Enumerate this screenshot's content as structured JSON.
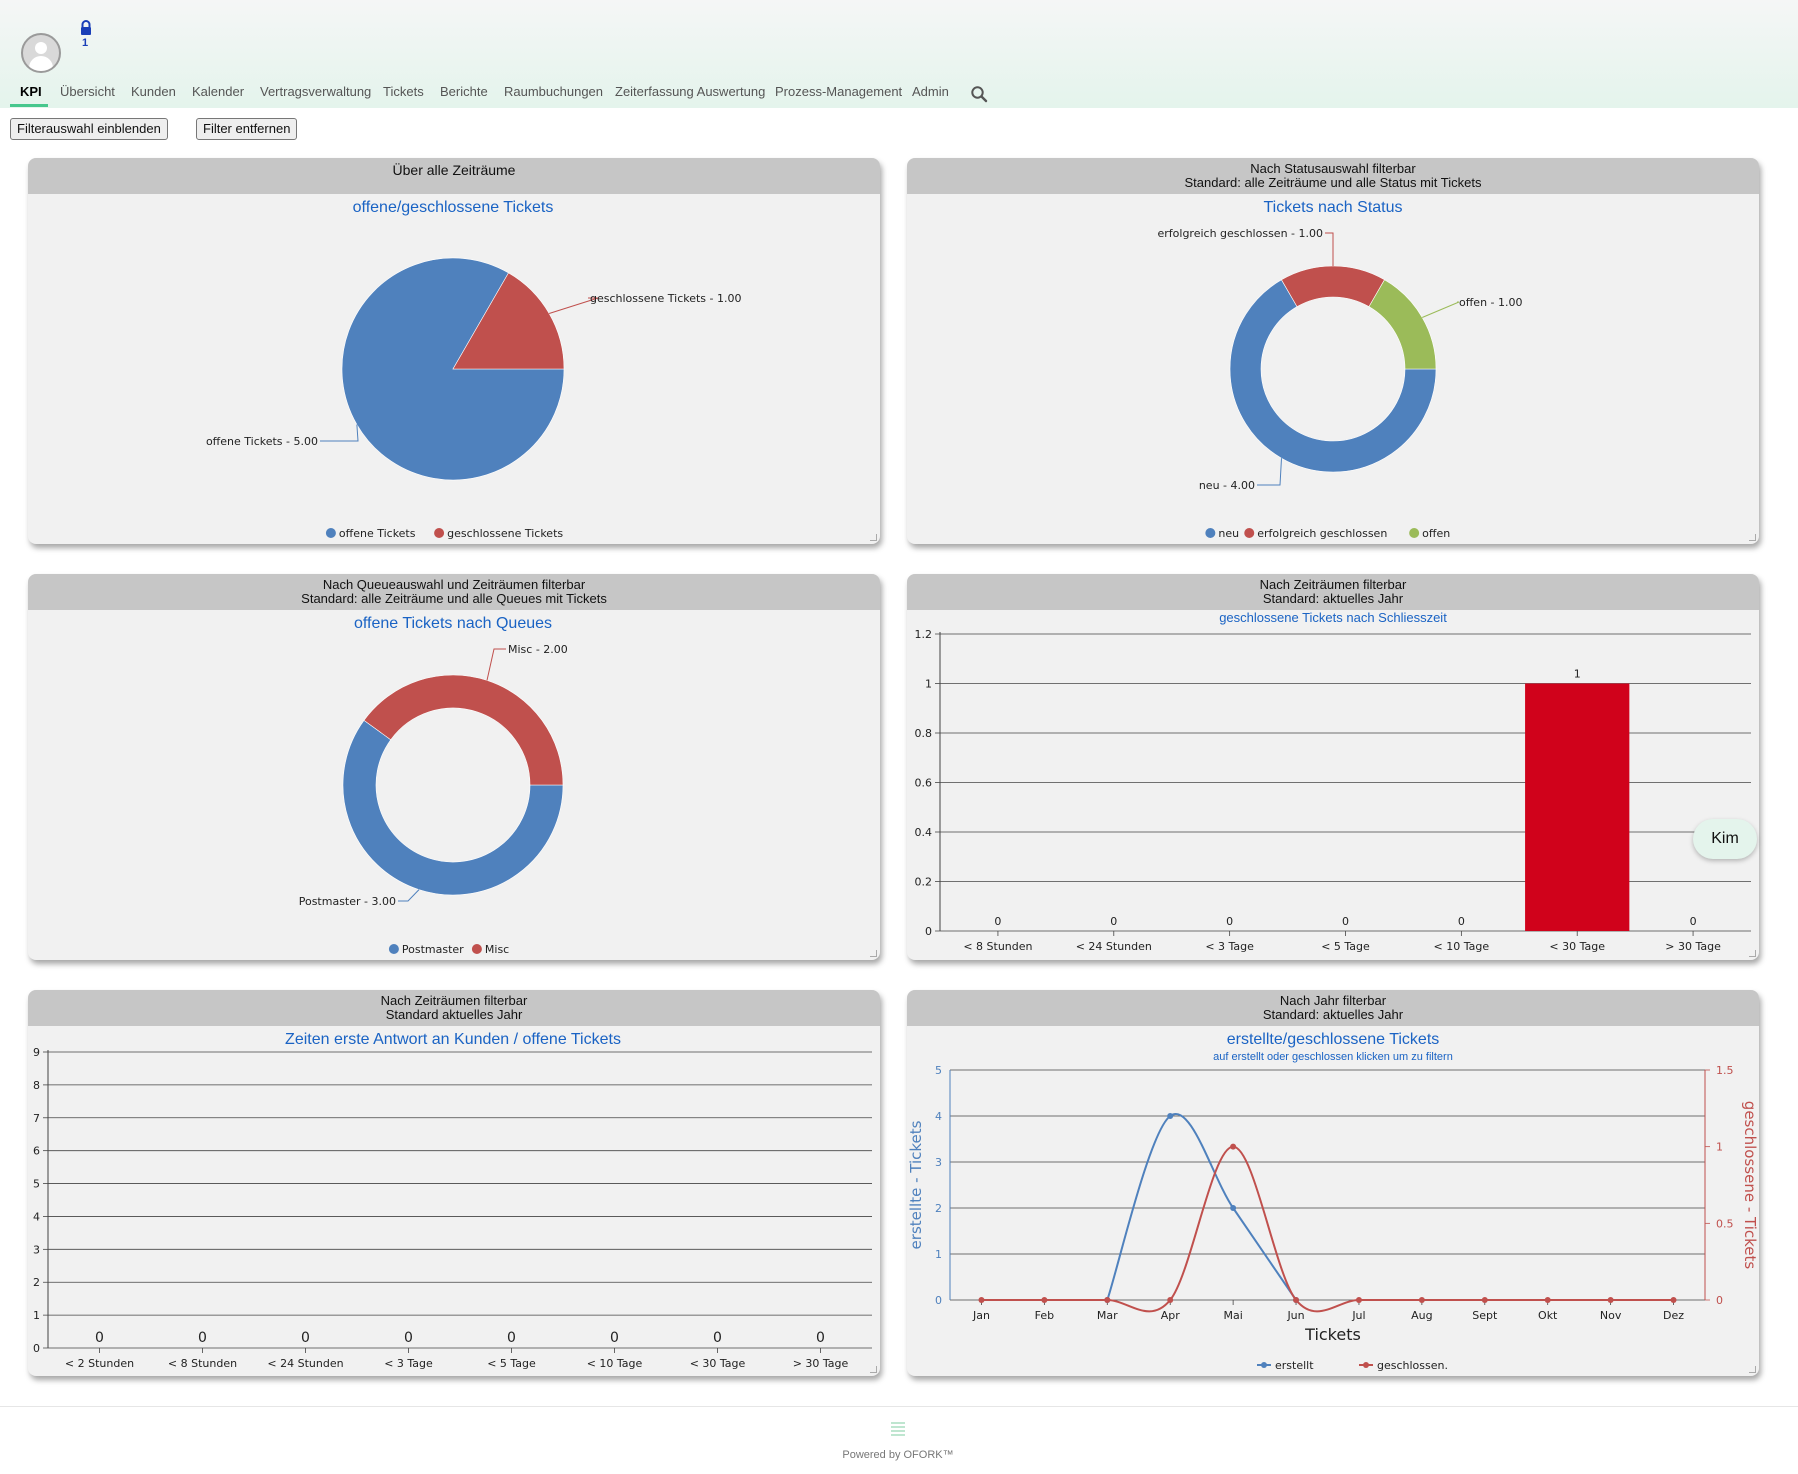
{
  "header": {
    "lock_count": "1"
  },
  "nav": {
    "items": [
      "KPI",
      "Übersicht",
      "Kunden",
      "Kalender",
      "Vertragsverwaltung",
      "Tickets",
      "Berichte",
      "Raumbuchungen",
      "Zeiterfassung Auswertung",
      "Prozess-Management",
      "Admin"
    ],
    "active": "KPI"
  },
  "toolbar": {
    "show_filter": "Filterauswahl einblenden",
    "remove_filter": "Filter entfernen"
  },
  "panels": {
    "p1": {
      "line1": "Über alle Zeiträume",
      "line2": ""
    },
    "p2": {
      "line1": "Nach Statusauswahl filterbar",
      "line2": "Standard: alle Zeiträume und alle Status mit Tickets"
    },
    "p3": {
      "line1": "Nach Queueauswahl und Zeiträumen filterbar",
      "line2": "Standard: alle Zeiträume und alle Queues mit Tickets"
    },
    "p4": {
      "line1": "Nach Zeiträumen filterbar",
      "line2": "Standard: aktuelles Jahr"
    },
    "p5": {
      "line1": "Nach Zeiträumen filterbar",
      "line2": "Standard aktuelles Jahr"
    },
    "p6": {
      "line1": "Nach Jahr filterbar",
      "line2": "Standard: aktuelles Jahr"
    }
  },
  "chat": {
    "label": "Kim"
  },
  "footer": {
    "text": "Powered by OFORK™"
  },
  "colors": {
    "blue": "#4f81bd",
    "red": "#c0504d",
    "green": "#9bbb59",
    "bar_red": "#d0021b",
    "title_blue": "#1a63c4"
  },
  "chart_data": [
    {
      "type": "pie",
      "title": "offene/geschlossene Tickets",
      "slices": [
        {
          "name": "offene Tickets",
          "label": "offene Tickets - 5.00",
          "value": 5,
          "color": "#4f81bd"
        },
        {
          "name": "geschlossene Tickets",
          "label": "geschlossene Tickets - 1.00",
          "value": 1,
          "color": "#c0504d"
        }
      ],
      "legend": [
        "offene Tickets",
        "geschlossene Tickets"
      ],
      "legend_position": "bottom"
    },
    {
      "type": "pie",
      "donut": true,
      "title": "Tickets nach Status",
      "slices": [
        {
          "name": "neu",
          "label": "neu - 4.00",
          "value": 4,
          "color": "#4f81bd"
        },
        {
          "name": "erfolgreich geschlossen",
          "label": "erfolgreich geschlossen - 1.00",
          "value": 1,
          "color": "#c0504d"
        },
        {
          "name": "offen",
          "label": "offen - 1.00",
          "value": 1,
          "color": "#9bbb59"
        }
      ],
      "legend": [
        "neu",
        "erfolgreich geschlossen",
        "offen"
      ],
      "legend_position": "bottom"
    },
    {
      "type": "pie",
      "donut": true,
      "title": "offene Tickets nach Queues",
      "slices": [
        {
          "name": "Postmaster",
          "label": "Postmaster - 3.00",
          "value": 3,
          "color": "#4f81bd"
        },
        {
          "name": "Misc",
          "label": "Misc - 2.00",
          "value": 2,
          "color": "#c0504d"
        }
      ],
      "legend": [
        "Postmaster",
        "Misc"
      ],
      "legend_position": "bottom"
    },
    {
      "type": "bar",
      "title": "geschlossene Tickets nach Schliesszeit",
      "categories": [
        "< 8 Stunden",
        "< 24 Stunden",
        "< 3 Tage",
        "< 5 Tage",
        "< 10 Tage",
        "< 30 Tage",
        "> 30 Tage"
      ],
      "values": [
        0,
        0,
        0,
        0,
        0,
        1,
        0
      ],
      "data_labels": [
        "0",
        "0",
        "0",
        "0",
        "0",
        "1",
        "0"
      ],
      "ylim": [
        0,
        1.2
      ],
      "yticks": [
        "0",
        "0.2",
        "0.4",
        "0.6",
        "0.8",
        "1",
        "1.2"
      ],
      "grid": true,
      "color": "#d0021b"
    },
    {
      "type": "bar",
      "title": "Zeiten erste Antwort an Kunden / offene Tickets",
      "categories": [
        "< 2 Stunden",
        "< 8 Stunden",
        "< 24 Stunden",
        "< 3 Tage",
        "< 5 Tage",
        "< 10 Tage",
        "< 30 Tage",
        "> 30 Tage"
      ],
      "values": [
        0,
        0,
        0,
        0,
        0,
        0,
        0,
        0
      ],
      "data_labels": [
        "0",
        "0",
        "0",
        "0",
        "0",
        "0",
        "0",
        "0"
      ],
      "ylim": [
        0,
        9
      ],
      "yticks": [
        "0",
        "1",
        "2",
        "3",
        "4",
        "5",
        "6",
        "7",
        "8",
        "9"
      ],
      "grid": true
    },
    {
      "type": "line",
      "title": "erstellte/geschlossene Tickets",
      "subtitle": "auf erstellt oder geschlossen klicken um zu filtern",
      "xlabel": "Tickets",
      "categories": [
        "Jan",
        "Feb",
        "Mar",
        "Apr",
        "Mai",
        "Jun",
        "Jul",
        "Aug",
        "Sept",
        "Okt",
        "Nov",
        "Dez"
      ],
      "series": [
        {
          "name": "erstellt",
          "values": [
            null,
            null,
            0,
            4,
            2,
            0,
            null,
            null,
            null,
            null,
            null,
            null
          ],
          "color": "#4f81bd",
          "axis": "left"
        },
        {
          "name": "geschlossen.",
          "values": [
            0,
            0,
            0,
            0,
            1,
            0,
            0,
            0,
            0,
            0,
            0,
            0
          ],
          "color": "#c0504d",
          "axis": "right"
        }
      ],
      "y_left": {
        "label": "erstellte - Tickets",
        "range": [
          0,
          5
        ],
        "ticks": [
          "0",
          "1",
          "2",
          "3",
          "4",
          "5"
        ]
      },
      "y_right": {
        "label": "geschlossene - Tickets",
        "range": [
          0,
          1.5
        ],
        "ticks": [
          "0",
          "0.5",
          "1",
          "1.5"
        ]
      },
      "grid": true,
      "legend_position": "bottom"
    }
  ]
}
